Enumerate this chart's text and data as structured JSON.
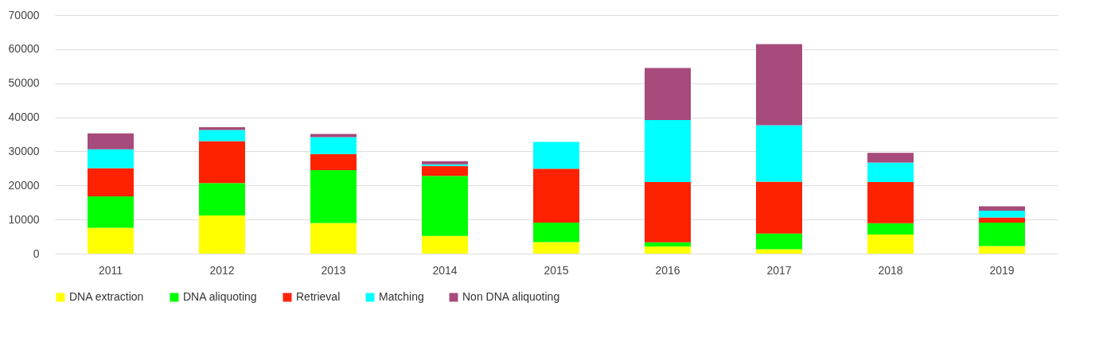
{
  "chart_data": {
    "type": "bar",
    "stacked": true,
    "categories": [
      "2011",
      "2012",
      "2013",
      "2014",
      "2015",
      "2016",
      "2017",
      "2018",
      "2019"
    ],
    "series": [
      {
        "name": "DNA extraction",
        "color": "#ffff00",
        "values": [
          7600,
          11200,
          9000,
          5200,
          3400,
          2100,
          1300,
          5600,
          2200
        ]
      },
      {
        "name": "DNA aliquoting",
        "color": "#00ff00",
        "values": [
          9200,
          9500,
          15500,
          17600,
          5700,
          1200,
          4600,
          3300,
          6900
        ]
      },
      {
        "name": "Retrieval",
        "color": "#ff2200",
        "values": [
          8300,
          12300,
          4700,
          2900,
          15800,
          17700,
          15200,
          12100,
          1500
        ]
      },
      {
        "name": "Matching",
        "color": "#00ffff",
        "values": [
          5500,
          3300,
          5000,
          500,
          7900,
          18200,
          16600,
          5700,
          2000
        ]
      },
      {
        "name": "Non DNA aliquoting",
        "color": "#a64b7b",
        "values": [
          4700,
          800,
          900,
          900,
          0,
          15300,
          23800,
          2900,
          1300
        ]
      }
    ],
    "ylim": [
      0,
      70000
    ],
    "yticks": [
      0,
      10000,
      20000,
      30000,
      40000,
      50000,
      60000,
      70000
    ],
    "grid": "y",
    "legend": "bottom"
  }
}
